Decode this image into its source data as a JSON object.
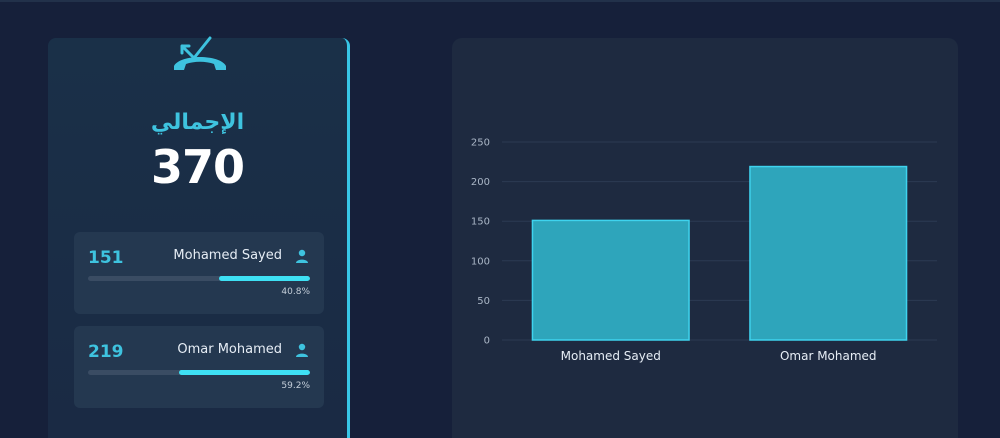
{
  "summary": {
    "total_label": "الإجمالي",
    "total_value": "370",
    "icon": "missed-call-icon",
    "agents": [
      {
        "name": "Mohamed Sayed",
        "count": "151",
        "percent_label": "40.8%",
        "percent": 40.8,
        "icon": "user-icon"
      },
      {
        "name": "Omar Mohamed",
        "count": "219",
        "percent_label": "59.2%",
        "percent": 59.2,
        "icon": "user-icon"
      }
    ]
  },
  "colors": {
    "accent": "#3ec3df",
    "bar": "#2ea5bb",
    "bar_border": "#3fd3ee",
    "card_bg": "#1e2a40",
    "page_bg": "#16203a"
  },
  "chart_data": {
    "type": "bar",
    "categories": [
      "Mohamed Sayed",
      "Omar Mohamed"
    ],
    "values": [
      151,
      219
    ],
    "ylim": [
      0,
      250
    ],
    "yticks": [
      "0",
      "50",
      "100",
      "150",
      "200",
      "250"
    ],
    "grid": true
  }
}
